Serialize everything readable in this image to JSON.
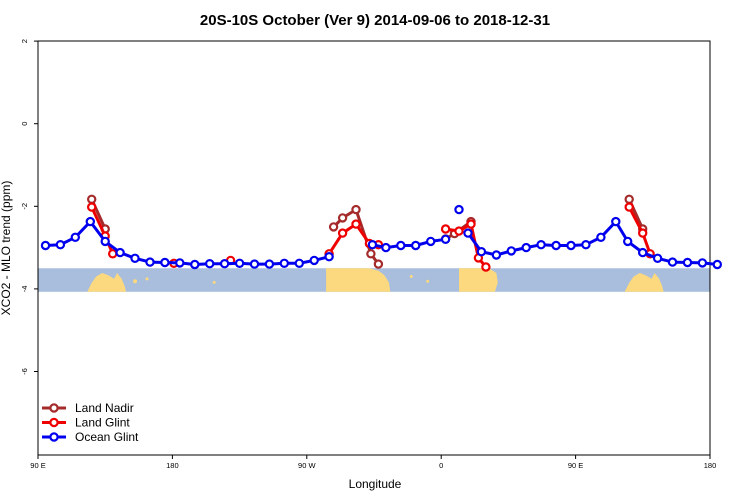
{
  "chart_data": {
    "type": "line",
    "title": "20S-10S October (Ver 9)   2014-09-06 to 2018-12-31",
    "xlabel": "Longitude",
    "ylabel": "XCO2 - MLO trend (ppm)",
    "xlim": [
      90,
      450
    ],
    "ylim": [
      -8,
      2
    ],
    "x_ticks": [
      {
        "value": 90,
        "label": "90 E"
      },
      {
        "value": 180,
        "label": "180"
      },
      {
        "value": 270,
        "label": "90 W"
      },
      {
        "value": 360,
        "label": "0"
      },
      {
        "value": 450,
        "label": "90 E"
      },
      {
        "value": 540,
        "label": "180"
      }
    ],
    "y_ticks": [
      {
        "value": 2,
        "label": "2"
      },
      {
        "value": 0,
        "label": "0"
      },
      {
        "value": -2,
        "label": "-2"
      },
      {
        "value": -4,
        "label": "-4"
      },
      {
        "value": -6,
        "label": "-6"
      }
    ],
    "legend": {
      "position": "bottom-left"
    },
    "map_strip": {
      "ymin": -4.07,
      "ymax": -3.5,
      "ocean_color": "#a8bedc",
      "land_color": "#fcd97e"
    },
    "series": [
      {
        "name": "Land Nadir",
        "color": "#a52a2a",
        "segments": [
          {
            "x": [
              126,
              135
            ],
            "y": [
              -1.83,
              -2.55
            ]
          },
          {
            "x": [
              288,
              294,
              303,
              313,
              318
            ],
            "y": [
              -2.5,
              -2.28,
              -2.08,
              -3.15,
              -3.4
            ]
          },
          {
            "x": [
              363,
              369,
              380
            ],
            "y": [
              -2.79,
              -2.66,
              -2.37
            ]
          },
          {
            "x": [
              486,
              495
            ],
            "y": [
              -1.83,
              -2.55
            ]
          }
        ]
      },
      {
        "name": "Land Glint",
        "color": "#ee0000",
        "segments": [
          {
            "x": [
              126,
              135,
              140
            ],
            "y": [
              -2.02,
              -2.72,
              -3.15
            ]
          },
          {
            "x": [
              181
            ],
            "y": [
              -3.38
            ]
          },
          {
            "x": [
              219
            ],
            "y": [
              -3.31
            ]
          },
          {
            "x": [
              285,
              294,
              303,
              312,
              318
            ],
            "y": [
              -3.15,
              -2.65,
              -2.43,
              -2.9,
              -2.93
            ]
          },
          {
            "x": [
              363,
              372,
              380,
              385,
              390
            ],
            "y": [
              -2.55,
              -2.6,
              -2.43,
              -3.25,
              -3.47
            ]
          },
          {
            "x": [
              486,
              495,
              500
            ],
            "y": [
              -2.02,
              -2.65,
              -3.15
            ]
          }
        ]
      },
      {
        "name": "Ocean Glint",
        "color": "#0000ee",
        "segments": [
          {
            "x": [
              95,
              105,
              115,
              125,
              135,
              145,
              155,
              165,
              175,
              185,
              195,
              205,
              215,
              225,
              235,
              245,
              255,
              265,
              275,
              285
            ],
            "y": [
              -2.95,
              -2.93,
              -2.75,
              -2.37,
              -2.85,
              -3.12,
              -3.26,
              -3.35,
              -3.36,
              -3.37,
              -3.41,
              -3.39,
              -3.39,
              -3.38,
              -3.4,
              -3.4,
              -3.38,
              -3.38,
              -3.31,
              -3.22
            ]
          },
          {
            "x": [
              314,
              323,
              333,
              343,
              353,
              363
            ],
            "y": [
              -2.93,
              -3.0,
              -2.95,
              -2.95,
              -2.85,
              -2.8
            ]
          },
          {
            "x": [
              372
            ],
            "y": [
              -2.08
            ]
          },
          {
            "x": [
              378,
              387,
              397,
              407,
              417,
              427,
              437,
              447,
              457,
              467,
              477,
              485,
              495,
              505,
              515,
              525,
              535,
              545
            ],
            "y": [
              -2.65,
              -3.1,
              -3.18,
              -3.08,
              -3.0,
              -2.93,
              -2.95,
              -2.95,
              -2.93,
              -2.75,
              -2.37,
              -2.85,
              -3.12,
              -3.26,
              -3.35,
              -3.36,
              -3.37,
              -3.41
            ]
          }
        ]
      }
    ]
  }
}
